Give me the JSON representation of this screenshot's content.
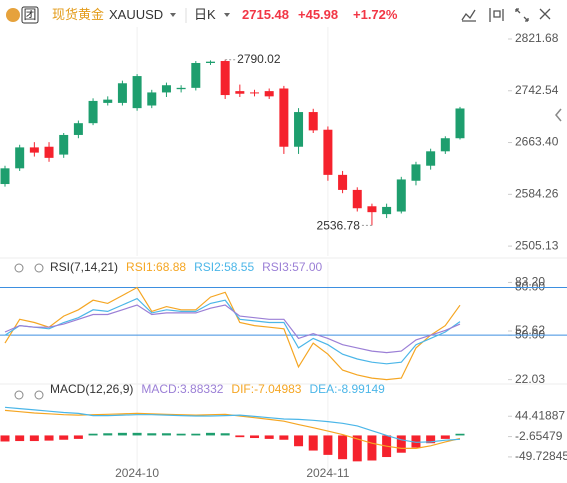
{
  "header": {
    "badge": "团",
    "title": "现货黄金",
    "symbol": "XAUUSD",
    "period": "日K",
    "price": "2715.48",
    "change": "+45.98",
    "change_pct": "+1.72%"
  },
  "chart_data": [
    {
      "type": "candlestick",
      "up_color": "#1e9e6e",
      "down_color": "#f5222d",
      "categories": [
        null,
        null,
        null,
        null,
        null,
        null,
        null,
        null,
        null,
        "2024-10",
        null,
        null,
        null,
        null,
        null,
        null,
        null,
        null,
        null,
        null,
        null,
        null,
        "2024-11",
        null,
        null,
        null,
        null,
        null,
        null,
        null,
        null,
        null
      ],
      "open": [
        2600,
        2624,
        2656,
        2657,
        2645,
        2675,
        2693,
        2724,
        2724,
        2716,
        2720,
        2740,
        2745,
        2747,
        2785,
        2788,
        2742,
        2740,
        2742,
        2746,
        2657,
        2710,
        2683,
        2614,
        2591,
        2566,
        2554,
        2558,
        2605,
        2628,
        2650,
        2670
      ],
      "high": [
        2628,
        2660,
        2664,
        2664,
        2678,
        2697,
        2731,
        2734,
        2758,
        2768,
        2744,
        2755,
        2751,
        2788,
        2789,
        2790.02,
        2752,
        2744,
        2746,
        2750,
        2716,
        2715,
        2688,
        2620,
        2595,
        2570,
        2570,
        2611,
        2634,
        2654,
        2673,
        2718
      ],
      "low": [
        2596,
        2620,
        2642,
        2634,
        2640,
        2670,
        2690,
        2720,
        2720,
        2712,
        2716,
        2733,
        2740,
        2743,
        2782,
        2730,
        2733,
        2734,
        2730,
        2646,
        2646,
        2678,
        2605,
        2586,
        2558,
        2536.78,
        2548,
        2555,
        2598,
        2622,
        2646,
        2668
      ],
      "close": [
        2624,
        2656,
        2648,
        2640,
        2675,
        2693,
        2727,
        2729,
        2754,
        2765,
        2740,
        2751,
        2747,
        2785,
        2787,
        2736,
        2738,
        2739,
        2734,
        2657,
        2710,
        2682,
        2614,
        2591,
        2563,
        2557,
        2565,
        2607,
        2630,
        2650,
        2670,
        2715.48
      ],
      "annotations": {
        "high": 2790.02,
        "low": 2536.78
      },
      "ylim": [
        2490,
        2840
      ],
      "yticks": [
        2821.68,
        {
          "value": 2742.54,
          "label": "2742.54"
        },
        {
          "value": 2663.4,
          "label": "2663.40"
        },
        2584.26,
        2505.13
      ]
    },
    {
      "type": "line",
      "title": "RSI(7,14,21)",
      "series": [
        {
          "name": "RSI1:68.88",
          "color": "#f5a623",
          "values": [
            45,
            60,
            58,
            55,
            62,
            66,
            72,
            70,
            75,
            80,
            65,
            68,
            66,
            66,
            74,
            77,
            58,
            56,
            55,
            54,
            30,
            45,
            38,
            28,
            25,
            23,
            22,
            23,
            42,
            50,
            56,
            68.88
          ]
        },
        {
          "name": "RSI2:58.55",
          "color": "#4bb6e8",
          "values": [
            50,
            56,
            55,
            54,
            58,
            61,
            66,
            65,
            69,
            73,
            64,
            66,
            65,
            65,
            70,
            72,
            60,
            59,
            58,
            58,
            42,
            48,
            44,
            38,
            35,
            33,
            32,
            33,
            44,
            48,
            52,
            58.55
          ]
        },
        {
          "name": "RSI3:57.00",
          "color": "#9b7fd6",
          "values": [
            52,
            56,
            55,
            55,
            57,
            60,
            63,
            63,
            66,
            69,
            63,
            64,
            64,
            64,
            67,
            69,
            62,
            61,
            60,
            60,
            48,
            51,
            48,
            44,
            42,
            40,
            39,
            40,
            47,
            50,
            53,
            57
          ]
        }
      ],
      "hlines": [
        80,
        50
      ],
      "hline_color": "#3d8fe0",
      "ylim": [
        18,
        86
      ],
      "yticks": [
        {
          "value": 80,
          "label": "80.00"
        },
        {
          "value": 83.2,
          "label": "83.20"
        },
        52.62,
        {
          "value": 50,
          "label": "50.00"
        },
        22.03
      ]
    },
    {
      "type": "combo",
      "title": "MACD(12,26,9)",
      "series": [
        {
          "name": "MACD:3.88332",
          "kind": "bar",
          "color": "#9b7fd6",
          "up_color": "#1e9e6e",
          "down_color": "#f5222d",
          "values": [
            -14,
            -13,
            -13,
            -12,
            -10,
            -8,
            4,
            5,
            6,
            6,
            5,
            5,
            4,
            4,
            6,
            5,
            -4,
            -6,
            -8,
            -10,
            -25,
            -35,
            -45,
            -55,
            -60,
            -58,
            -50,
            -40,
            -28,
            -18,
            -8,
            3.88332
          ]
        },
        {
          "name": "DIF:-7.04983",
          "kind": "line",
          "color": "#f5a623",
          "values": [
            58,
            55,
            52,
            50,
            48,
            47,
            48,
            49,
            50,
            51,
            50,
            49,
            48,
            47,
            48,
            49,
            45,
            41,
            37,
            33,
            25,
            18,
            10,
            2,
            -8,
            -18,
            -25,
            -30,
            -30,
            -24,
            -15,
            -7.04983
          ]
        },
        {
          "name": "DEA:-8.99149",
          "kind": "line",
          "color": "#4bb6e8",
          "values": [
            65,
            62,
            59,
            56,
            53,
            51,
            46,
            46,
            47,
            48,
            48,
            47,
            46,
            45,
            45,
            46,
            47,
            44,
            41,
            38,
            37,
            35,
            32,
            28,
            22,
            11,
            0,
            -10,
            -16,
            -15,
            -11,
            -8.99149
          ]
        }
      ],
      "ylim": [
        -80,
        82
      ],
      "yticks": [
        44.41887,
        -2.65479,
        -49.72845
      ]
    }
  ]
}
